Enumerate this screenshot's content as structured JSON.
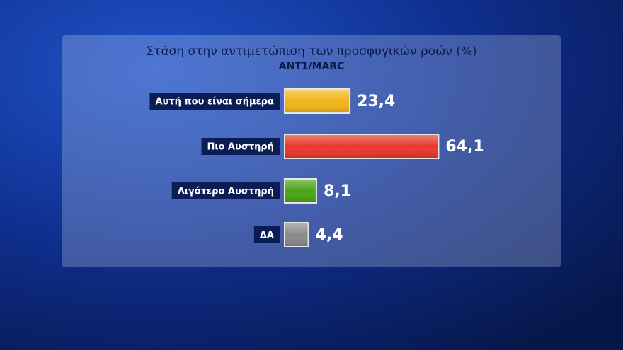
{
  "chart_data": {
    "type": "bar",
    "orientation": "horizontal",
    "title": "Στάση στην αντιμετώπιση των προσφυγικών ροών (%)",
    "subtitle": "ANT1/MARC",
    "categories": [
      "Αυτή που είναι σήμερα",
      "Πιο Αυστηρή",
      "Λιγότερο Αυστηρή",
      "ΔΑ"
    ],
    "values": [
      23.4,
      64.1,
      8.1,
      4.4
    ],
    "value_labels": [
      "23,4",
      "64,1",
      "8,1",
      "4,4"
    ],
    "colors": [
      "#f2b417",
      "#e8382c",
      "#4aa616",
      "#8a8a8a"
    ]
  }
}
